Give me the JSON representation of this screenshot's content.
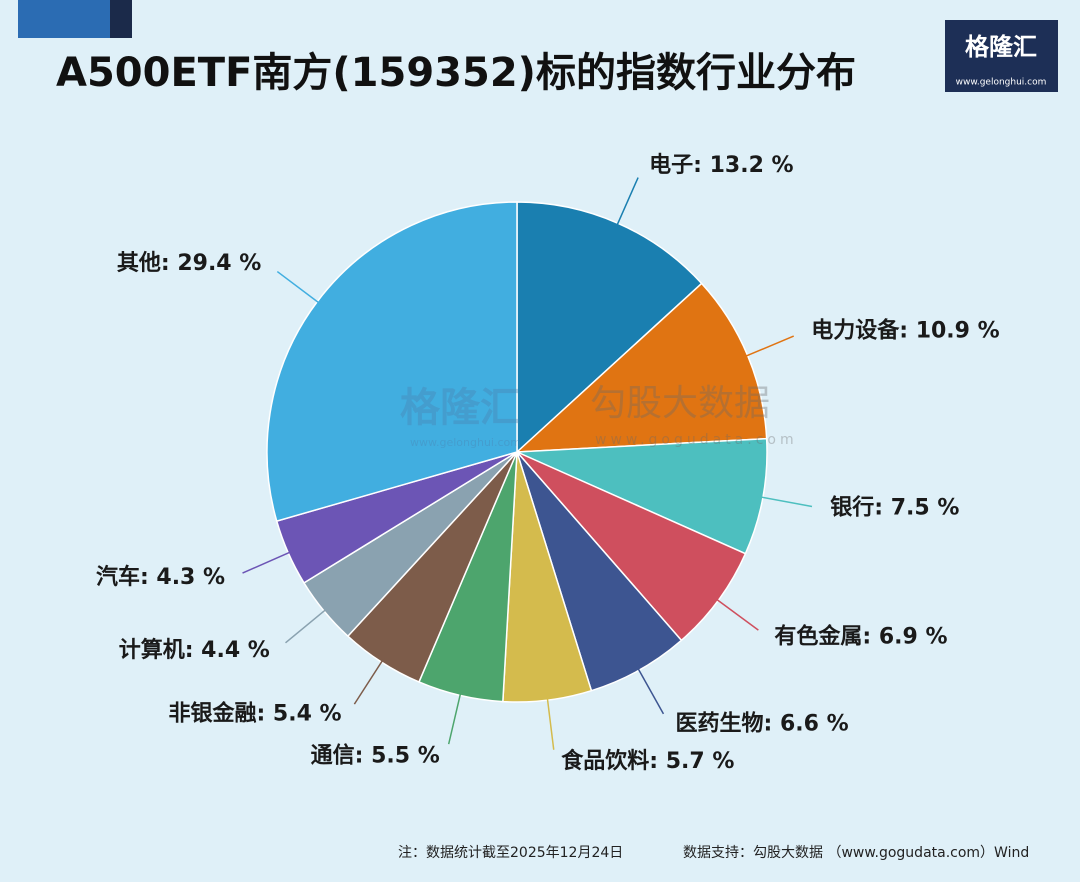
{
  "chart_data": {
    "type": "pie",
    "title": "A500ETF南方(159352)标的指数行业分布",
    "values": [
      13.2,
      10.9,
      7.5,
      6.9,
      6.6,
      5.7,
      5.5,
      5.4,
      4.4,
      4.3,
      29.4
    ],
    "value_labels": [
      "电子: 13.2 %",
      "电力设备: 10.9 %",
      "银行: 7.5 %",
      "有色金属: 6.9 %",
      "医药生物: 6.6 %",
      "食品饮料: 5.7 %",
      "通信: 5.5 %",
      "非银金融: 5.4 %",
      "计算机: 4.4 %",
      "汽车: 4.3 %",
      "其他: 29.4 %"
    ],
    "colors": [
      "#1a7fb0",
      "#e07412",
      "#4dbfbf",
      "#cf4f5e",
      "#3d5591",
      "#d4bb4d",
      "#4da56d",
      "#7d5c4a",
      "#8aa2b0",
      "#6c55b5",
      "#41aee0"
    ],
    "logo": {
      "name": "格隆汇",
      "url": "www.gelonghui.com"
    },
    "watermark": {
      "left": "格隆汇",
      "left_url": "www.gelonghui.com",
      "right": "勾股大数据",
      "right_url": "www.gogudata.com"
    },
    "note": "注：数据统计截至2025年12月24日",
    "source": "数据支持：勾股大数据 （www.gogudata.com）Wind"
  }
}
